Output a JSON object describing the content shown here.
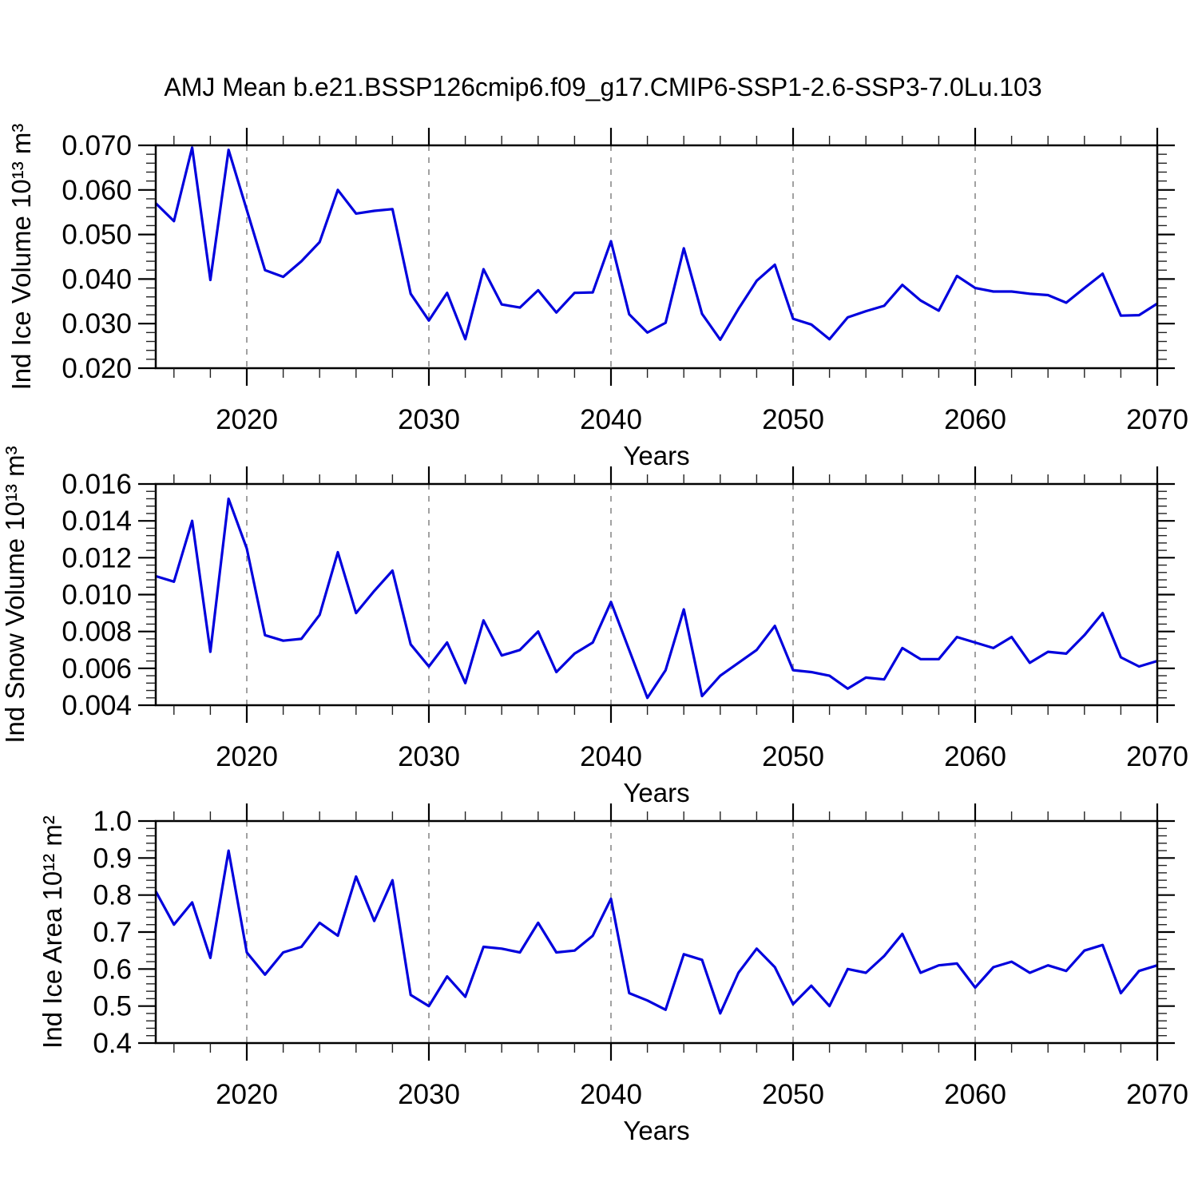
{
  "title": "AMJ Mean b.e21.BSSP126cmip6.f09_g17.CMIP6-SSP1-2.6-SSP3-7.0Lu.103",
  "line_color": "#0000dd",
  "axis_color": "#000000",
  "grid_color": "#8a8a8a",
  "chart_data": [
    {
      "type": "line",
      "title": "",
      "ylabel": "Ind Ice Volume 10¹³ m³",
      "xlabel": "Years",
      "xlim": [
        2015,
        2070
      ],
      "ylim": [
        0.02,
        0.07
      ],
      "xticks": [
        2020,
        2030,
        2040,
        2050,
        2060,
        2070
      ],
      "xtick_labels": [
        "2020",
        "2030",
        "2040",
        "2050",
        "2060",
        "2070"
      ],
      "xtick_minor_step": 2,
      "grid_x": [
        2020,
        2030,
        2040,
        2050,
        2060
      ],
      "yticks": [
        0.02,
        0.03,
        0.04,
        0.05,
        0.06,
        0.07
      ],
      "ytick_labels": [
        "0.020",
        "0.030",
        "0.040",
        "0.050",
        "0.060",
        "0.070"
      ],
      "ytick_minor_step": 0.002,
      "legend": "none",
      "grid": "vertical-dashed",
      "x": [
        2015,
        2016,
        2017,
        2018,
        2019,
        2020,
        2021,
        2022,
        2023,
        2024,
        2025,
        2026,
        2027,
        2028,
        2029,
        2030,
        2031,
        2032,
        2033,
        2034,
        2035,
        2036,
        2037,
        2038,
        2039,
        2040,
        2041,
        2042,
        2043,
        2044,
        2045,
        2046,
        2047,
        2048,
        2049,
        2050,
        2051,
        2052,
        2053,
        2054,
        2055,
        2056,
        2057,
        2058,
        2059,
        2060,
        2061,
        2062,
        2063,
        2064,
        2065,
        2066,
        2067,
        2068,
        2069,
        2070
      ],
      "values": [
        0.057,
        0.053,
        0.0695,
        0.0398,
        0.069,
        0.0555,
        0.042,
        0.0405,
        0.044,
        0.0483,
        0.06,
        0.0547,
        0.0553,
        0.0557,
        0.0367,
        0.0307,
        0.0369,
        0.0265,
        0.0422,
        0.0343,
        0.0336,
        0.0375,
        0.0325,
        0.0369,
        0.037,
        0.0485,
        0.0321,
        0.028,
        0.0302,
        0.0469,
        0.0322,
        0.0264,
        0.0333,
        0.0396,
        0.0432,
        0.0311,
        0.0298,
        0.0265,
        0.0314,
        0.0328,
        0.034,
        0.0387,
        0.0352,
        0.0329,
        0.0407,
        0.038,
        0.0372,
        0.0372,
        0.0367,
        0.0364,
        0.0347,
        0.038,
        0.0412,
        0.0318,
        0.0319,
        0.0345
      ]
    },
    {
      "type": "line",
      "title": "",
      "ylabel": "Ind Snow Volume 10¹³ m³",
      "xlabel": "Years",
      "xlim": [
        2015,
        2070
      ],
      "ylim": [
        0.004,
        0.016
      ],
      "xticks": [
        2020,
        2030,
        2040,
        2050,
        2060,
        2070
      ],
      "xtick_labels": [
        "2020",
        "2030",
        "2040",
        "2050",
        "2060",
        "2070"
      ],
      "xtick_minor_step": 2,
      "grid_x": [
        2020,
        2030,
        2040,
        2050,
        2060
      ],
      "yticks": [
        0.004,
        0.006,
        0.008,
        0.01,
        0.012,
        0.014,
        0.016
      ],
      "ytick_labels": [
        "0.004",
        "0.006",
        "0.008",
        "0.010",
        "0.012",
        "0.014",
        "0.016"
      ],
      "ytick_minor_step": 0.0004,
      "legend": "none",
      "grid": "vertical-dashed",
      "x": [
        2015,
        2016,
        2017,
        2018,
        2019,
        2020,
        2021,
        2022,
        2023,
        2024,
        2025,
        2026,
        2027,
        2028,
        2029,
        2030,
        2031,
        2032,
        2033,
        2034,
        2035,
        2036,
        2037,
        2038,
        2039,
        2040,
        2041,
        2042,
        2043,
        2044,
        2045,
        2046,
        2047,
        2048,
        2049,
        2050,
        2051,
        2052,
        2053,
        2054,
        2055,
        2056,
        2057,
        2058,
        2059,
        2060,
        2061,
        2062,
        2063,
        2064,
        2065,
        2066,
        2067,
        2068,
        2069,
        2070
      ],
      "values": [
        0.011,
        0.0107,
        0.014,
        0.0069,
        0.0152,
        0.0125,
        0.0078,
        0.0075,
        0.0076,
        0.0089,
        0.0123,
        0.009,
        0.0102,
        0.0113,
        0.0073,
        0.0061,
        0.0074,
        0.0052,
        0.0086,
        0.0067,
        0.007,
        0.008,
        0.0058,
        0.0068,
        0.0074,
        0.0096,
        0.007,
        0.0044,
        0.0059,
        0.0092,
        0.0045,
        0.0056,
        0.0063,
        0.007,
        0.0083,
        0.0059,
        0.0058,
        0.0056,
        0.0049,
        0.0055,
        0.0054,
        0.0071,
        0.0065,
        0.0065,
        0.0077,
        0.0074,
        0.0071,
        0.0077,
        0.0063,
        0.0069,
        0.0068,
        0.0078,
        0.009,
        0.0066,
        0.0061,
        0.0064
      ]
    },
    {
      "type": "line",
      "title": "",
      "ylabel": "Ind Ice Area 10¹² m²",
      "xlabel": "Years",
      "xlim": [
        2015,
        2070
      ],
      "ylim": [
        0.4,
        1.0
      ],
      "xticks": [
        2020,
        2030,
        2040,
        2050,
        2060,
        2070
      ],
      "xtick_labels": [
        "2020",
        "2030",
        "2040",
        "2050",
        "2060",
        "2070"
      ],
      "xtick_minor_step": 2,
      "grid_x": [
        2020,
        2030,
        2040,
        2050,
        2060
      ],
      "yticks": [
        0.4,
        0.5,
        0.6,
        0.7,
        0.8,
        0.9,
        1.0
      ],
      "ytick_labels": [
        "0.4",
        "0.5",
        "0.6",
        "0.7",
        "0.8",
        "0.9",
        "1.0"
      ],
      "ytick_minor_step": 0.02,
      "legend": "none",
      "grid": "vertical-dashed",
      "x": [
        2015,
        2016,
        2017,
        2018,
        2019,
        2020,
        2021,
        2022,
        2023,
        2024,
        2025,
        2026,
        2027,
        2028,
        2029,
        2030,
        2031,
        2032,
        2033,
        2034,
        2035,
        2036,
        2037,
        2038,
        2039,
        2040,
        2041,
        2042,
        2043,
        2044,
        2045,
        2046,
        2047,
        2048,
        2049,
        2050,
        2051,
        2052,
        2053,
        2054,
        2055,
        2056,
        2057,
        2058,
        2059,
        2060,
        2061,
        2062,
        2063,
        2064,
        2065,
        2066,
        2067,
        2068,
        2069,
        2070
      ],
      "values": [
        0.81,
        0.72,
        0.78,
        0.63,
        0.92,
        0.645,
        0.585,
        0.645,
        0.66,
        0.725,
        0.69,
        0.85,
        0.73,
        0.84,
        0.53,
        0.5,
        0.58,
        0.525,
        0.66,
        0.655,
        0.645,
        0.725,
        0.645,
        0.65,
        0.69,
        0.79,
        0.535,
        0.515,
        0.49,
        0.64,
        0.625,
        0.48,
        0.59,
        0.655,
        0.605,
        0.505,
        0.555,
        0.5,
        0.6,
        0.59,
        0.635,
        0.695,
        0.59,
        0.61,
        0.615,
        0.55,
        0.605,
        0.62,
        0.59,
        0.61,
        0.595,
        0.65,
        0.665,
        0.535,
        0.595,
        0.61
      ]
    }
  ]
}
